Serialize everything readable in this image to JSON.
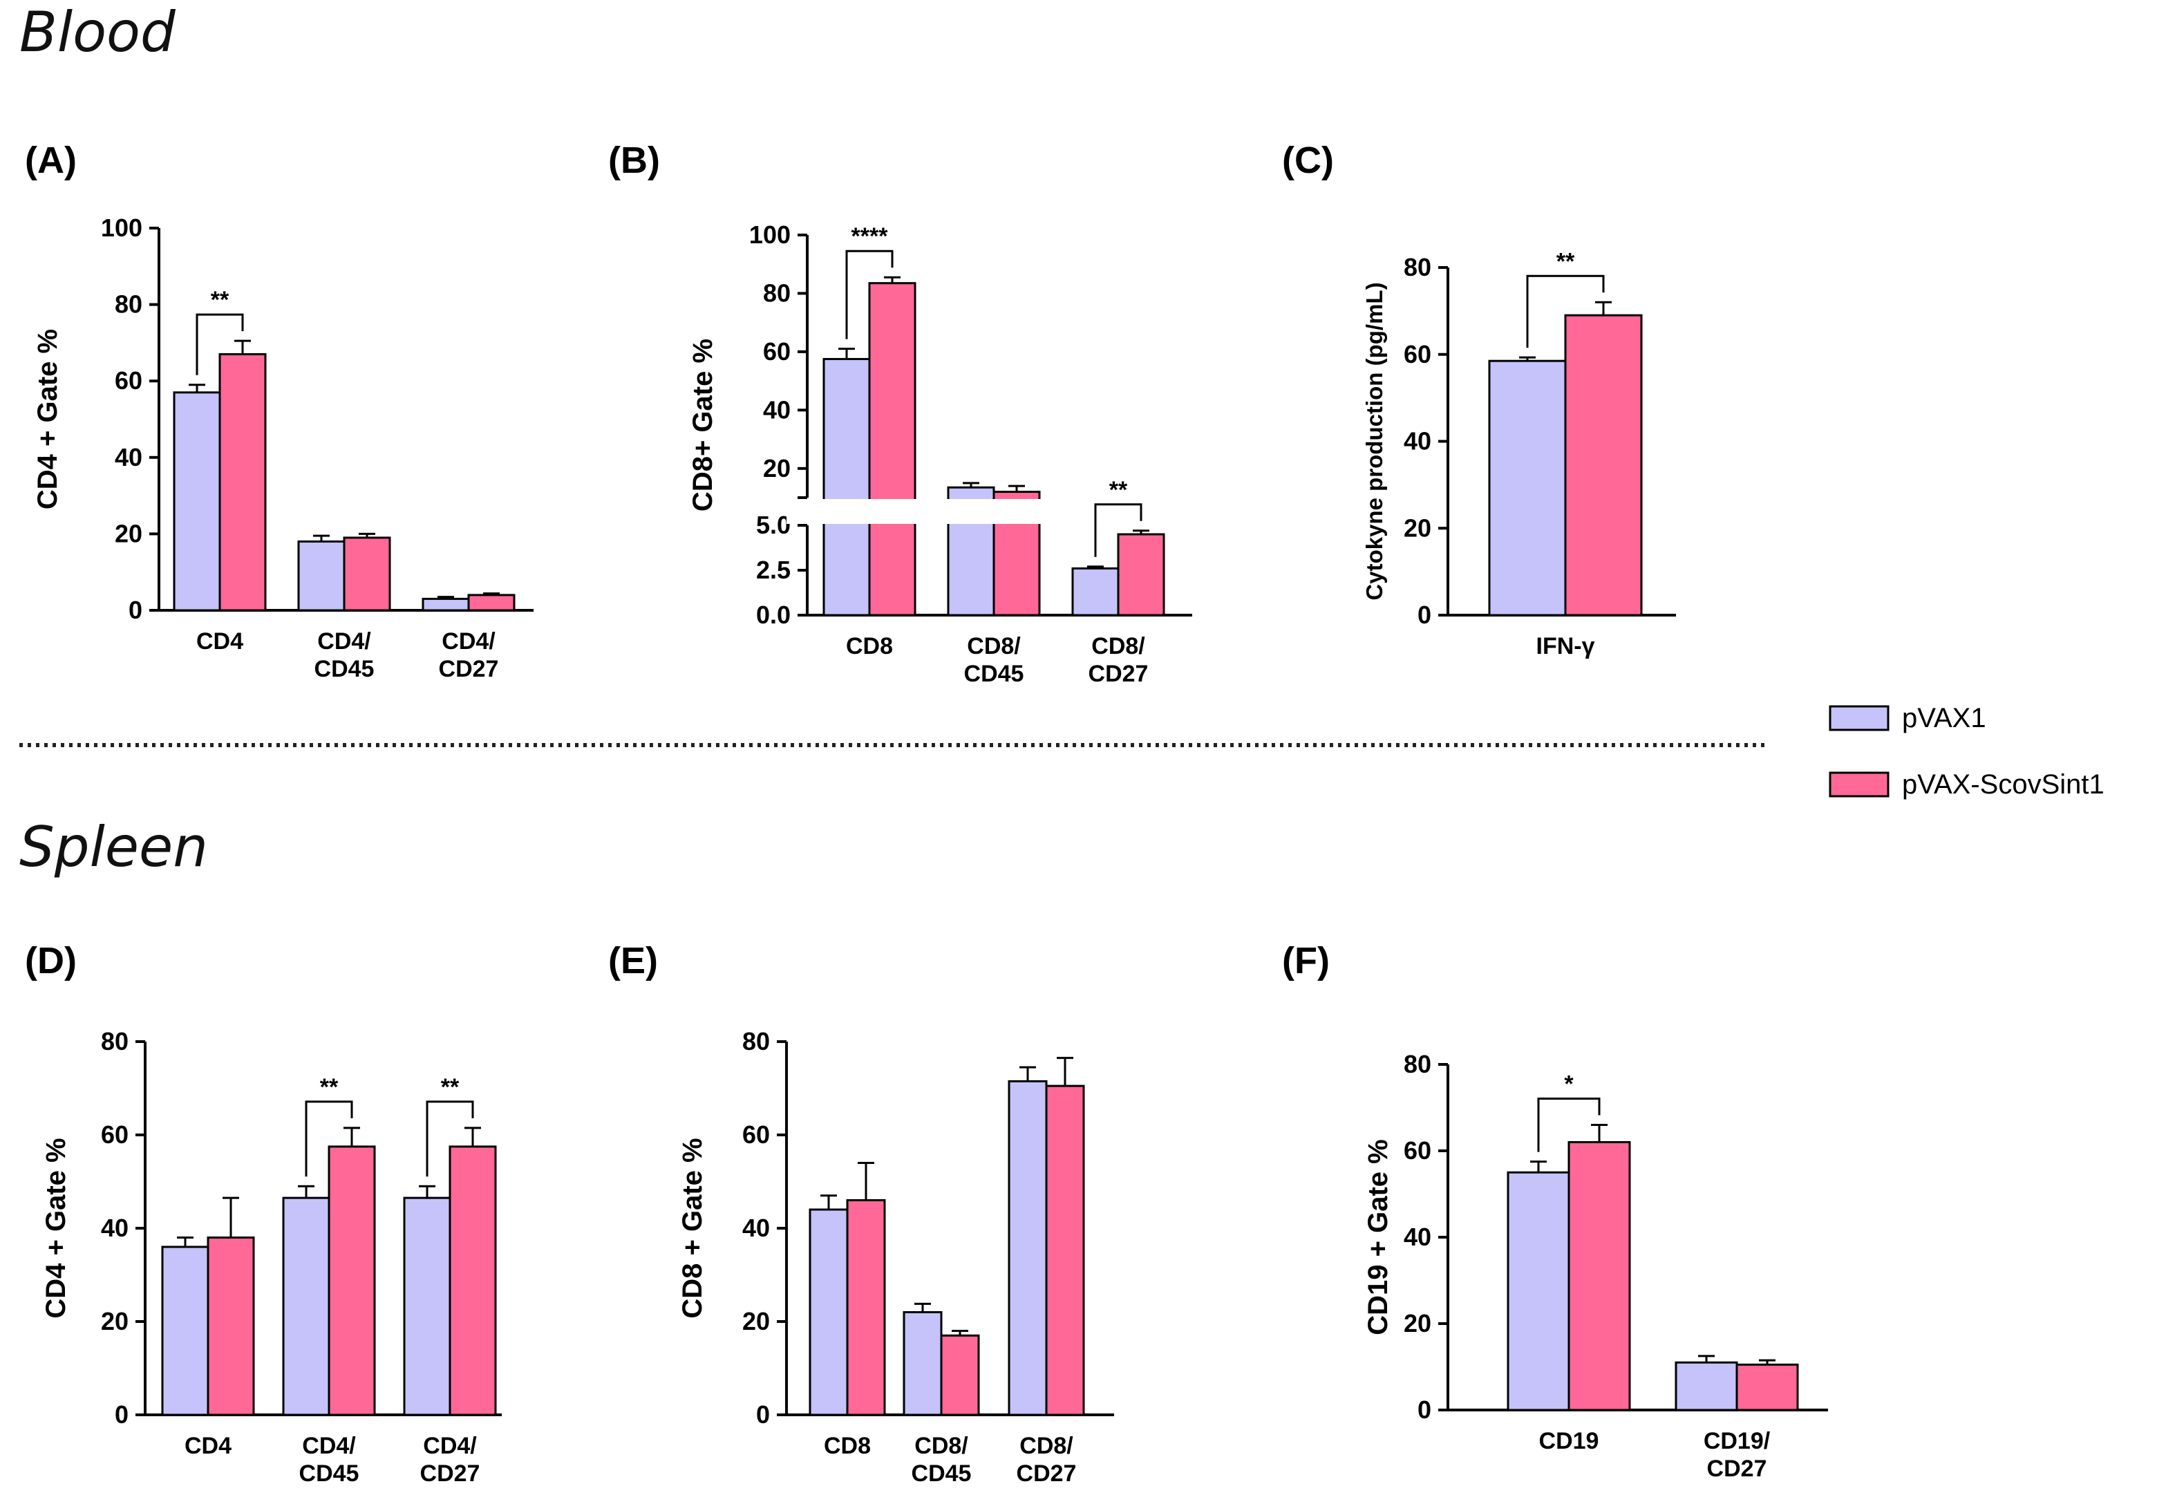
{
  "sections": {
    "top": "Blood",
    "bottom": "Spleen"
  },
  "legend": [
    {
      "label": "pVAX1",
      "color": "#c5c3fa"
    },
    {
      "label": "pVAX-ScovSint1",
      "color": "#ff6897"
    }
  ],
  "colors": {
    "group1": "#c5c3fa",
    "group2": "#ff6897",
    "axis": "#000000"
  },
  "chart_data": [
    {
      "id": "A",
      "panel_label": "(A)",
      "type": "bar",
      "section": "Blood",
      "ylabel": "CD4 + Gate %",
      "ylim": [
        0,
        100
      ],
      "yticks": [
        "0",
        "20",
        "40",
        "60",
        "80",
        "100"
      ],
      "categories": [
        [
          "CD4"
        ],
        [
          "CD4/",
          "CD45"
        ],
        [
          "CD4/",
          "CD27"
        ]
      ],
      "series": [
        {
          "name": "pVAX1",
          "values": [
            57,
            18,
            3
          ],
          "errors": [
            2,
            1.5,
            0.5
          ]
        },
        {
          "name": "pVAX-ScovSint1",
          "values": [
            67,
            19,
            4
          ],
          "errors": [
            3.5,
            1,
            0.4
          ]
        }
      ],
      "significance": [
        {
          "category": 0,
          "label": "**"
        }
      ]
    },
    {
      "id": "B",
      "panel_label": "(B)",
      "type": "bar",
      "section": "Blood",
      "ylabel": "CD8+ Gate %",
      "broken_axis": true,
      "lower_ylim": [
        0,
        5
      ],
      "upper_ylim": [
        10,
        100
      ],
      "lower_ticks": [
        "0.0",
        "2.5",
        "5.0"
      ],
      "upper_ticks": [
        "20",
        "40",
        "60",
        "80",
        "100"
      ],
      "categories": [
        [
          "CD8"
        ],
        [
          "CD8/",
          "CD45"
        ],
        [
          "CD8/",
          "CD27"
        ]
      ],
      "series": [
        {
          "name": "pVAX1",
          "values": [
            57.5,
            13.5,
            2.6
          ],
          "errors": [
            3.5,
            1.5,
            0.1
          ]
        },
        {
          "name": "pVAX-ScovSint1",
          "values": [
            83.5,
            12,
            4.5
          ],
          "errors": [
            2,
            2,
            0.2
          ]
        }
      ],
      "significance": [
        {
          "category": 0,
          "label": "****"
        },
        {
          "category": 2,
          "label": "**"
        }
      ]
    },
    {
      "id": "C",
      "panel_label": "(C)",
      "type": "bar",
      "section": "Blood",
      "ylabel": "Cytokyne production (pg/mL)",
      "ylim": [
        0,
        80
      ],
      "yticks": [
        "0",
        "20",
        "40",
        "60",
        "80"
      ],
      "categories": [
        [
          "IFN-γ"
        ]
      ],
      "series": [
        {
          "name": "pVAX1",
          "values": [
            58.5
          ],
          "errors": [
            0.8
          ]
        },
        {
          "name": "pVAX-ScovSint1",
          "values": [
            69
          ],
          "errors": [
            3
          ]
        }
      ],
      "significance": [
        {
          "category": 0,
          "label": "**"
        }
      ]
    },
    {
      "id": "D",
      "panel_label": "(D)",
      "type": "bar",
      "section": "Spleen",
      "ylabel": "CD4 + Gate %",
      "ylim": [
        0,
        80
      ],
      "yticks": [
        "0",
        "20",
        "40",
        "60",
        "80"
      ],
      "categories": [
        [
          "CD4"
        ],
        [
          "CD4/",
          "CD45"
        ],
        [
          "CD4/",
          "CD27"
        ]
      ],
      "series": [
        {
          "name": "pVAX1",
          "values": [
            36,
            46.5,
            46.5
          ],
          "errors": [
            2,
            2.5,
            2.5
          ]
        },
        {
          "name": "pVAX-ScovSint1",
          "values": [
            38,
            57.5,
            57.5
          ],
          "errors": [
            8.5,
            4,
            4
          ]
        }
      ],
      "significance": [
        {
          "category": 1,
          "label": "**"
        },
        {
          "category": 2,
          "label": "**"
        }
      ]
    },
    {
      "id": "E",
      "panel_label": "(E)",
      "type": "bar",
      "section": "Spleen",
      "ylabel": "CD8 + Gate %",
      "ylim": [
        0,
        80
      ],
      "yticks": [
        "0",
        "20",
        "40",
        "60",
        "80"
      ],
      "categories": [
        [
          "CD8"
        ],
        [
          "CD8/",
          "CD45"
        ],
        [
          "CD8/",
          "CD27"
        ]
      ],
      "series": [
        {
          "name": "pVAX1",
          "values": [
            44,
            22,
            71.5
          ],
          "errors": [
            3,
            1.8,
            3
          ]
        },
        {
          "name": "pVAX-ScovSint1",
          "values": [
            46,
            17,
            70.5
          ],
          "errors": [
            8,
            1,
            6
          ]
        }
      ],
      "significance": []
    },
    {
      "id": "F",
      "panel_label": "(F)",
      "type": "bar",
      "section": "Spleen",
      "ylabel": "CD19 + Gate %",
      "ylim": [
        0,
        80
      ],
      "yticks": [
        "0",
        "20",
        "40",
        "60",
        "80"
      ],
      "categories": [
        [
          "CD19"
        ],
        [
          "CD19/",
          "CD27"
        ]
      ],
      "series": [
        {
          "name": "pVAX1",
          "values": [
            55,
            11
          ],
          "errors": [
            2.5,
            1.5
          ]
        },
        {
          "name": "pVAX-ScovSint1",
          "values": [
            62,
            10.5
          ],
          "errors": [
            4,
            1
          ]
        }
      ],
      "significance": [
        {
          "category": 0,
          "label": "*"
        }
      ]
    }
  ]
}
